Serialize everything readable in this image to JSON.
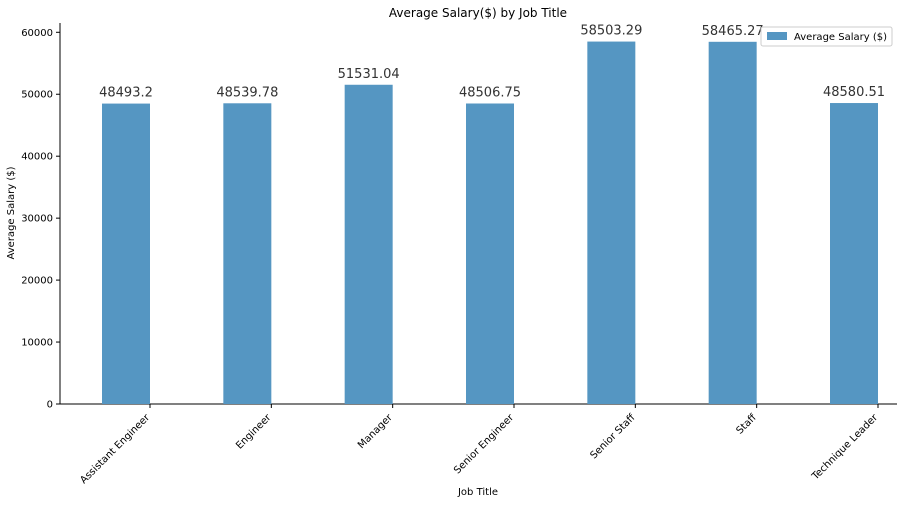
{
  "chart_data": {
    "type": "bar",
    "title": "Average Salary($) by Job Title",
    "xlabel": "Job Title",
    "ylabel": "Average Salary ($)",
    "categories": [
      "Assistant Engineer",
      "Engineer",
      "Manager",
      "Senior Engineer",
      "Senior Staff",
      "Staff",
      "Technique Leader"
    ],
    "series": [
      {
        "name": "Average Salary ($)",
        "values": [
          48493.2,
          48539.78,
          51531.04,
          48506.75,
          58503.29,
          58465.27,
          48580.51
        ],
        "color": "#5596c2"
      }
    ],
    "data_labels": [
      "48493.2",
      "48539.78",
      "51531.04",
      "48506.75",
      "58503.29",
      "58465.27",
      "48580.51"
    ],
    "ylim": [
      0,
      61500
    ],
    "yticks": [
      0,
      10000,
      20000,
      30000,
      40000,
      50000,
      60000
    ],
    "grid": false,
    "legend_position": "top-right"
  }
}
